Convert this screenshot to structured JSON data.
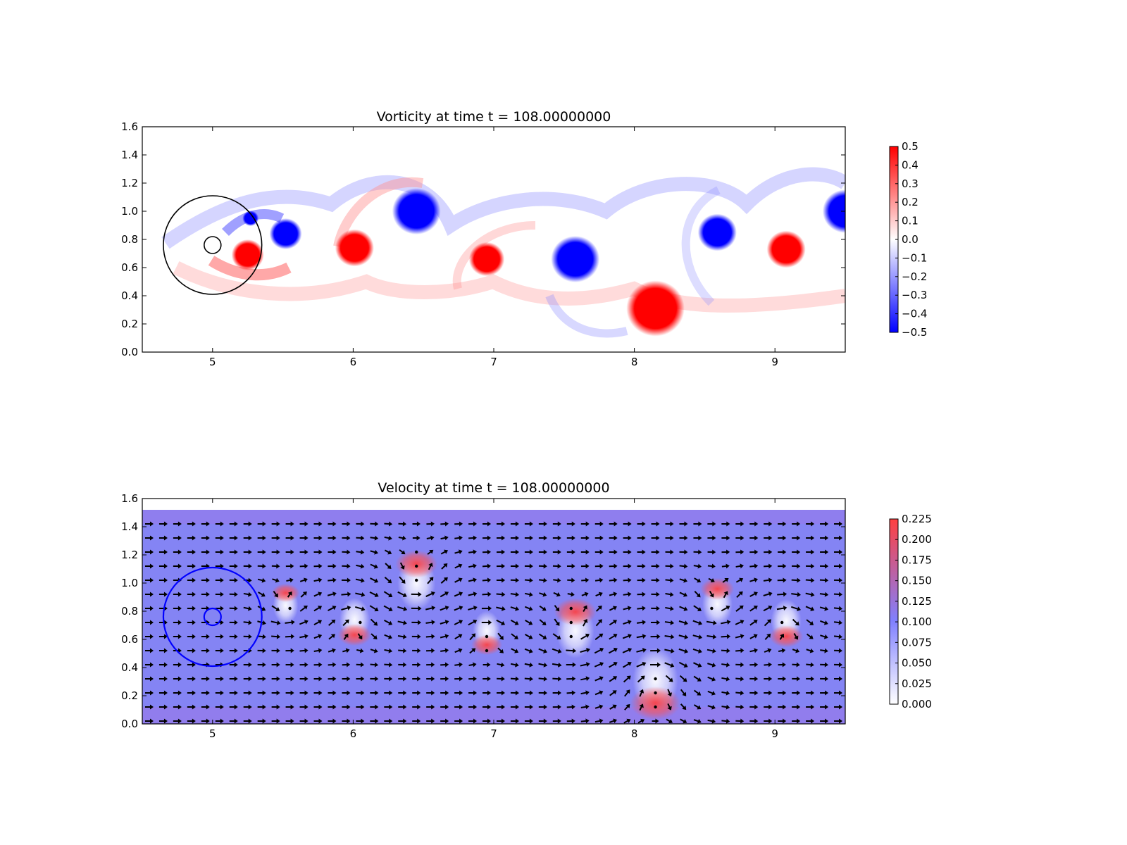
{
  "charts": [
    {
      "title": "Vorticity at time t =   108.00000000",
      "type": "heatmap",
      "xlim": [
        4.5,
        9.5
      ],
      "ylim": [
        0.0,
        1.6
      ],
      "xticks": [
        "5",
        "6",
        "7",
        "8",
        "9"
      ],
      "xtick_values": [
        5,
        6,
        7,
        8,
        9
      ],
      "yticks": [
        "0.0",
        "0.2",
        "0.4",
        "0.6",
        "0.8",
        "1.0",
        "1.2",
        "1.4",
        "1.6"
      ],
      "ytick_values": [
        0.0,
        0.2,
        0.4,
        0.6,
        0.8,
        1.0,
        1.2,
        1.4,
        1.6
      ],
      "colormap": "bwr",
      "colors": {
        "positive": "#ff0000",
        "negative": "#0000ff",
        "zero": "#ffffff"
      },
      "colorbar": {
        "range": [
          -0.5,
          0.5
        ],
        "ticks": [
          "0.5",
          "0.4",
          "0.3",
          "0.2",
          "0.1",
          "0.0",
          "−0.1",
          "−0.2",
          "−0.3",
          "−0.4",
          "−0.5"
        ],
        "tick_values": [
          0.5,
          0.4,
          0.3,
          0.2,
          0.1,
          0.0,
          -0.1,
          -0.2,
          -0.3,
          -0.4,
          -0.5
        ]
      },
      "circles": [
        {
          "center": [
            5.0,
            0.76
          ],
          "radius": 0.35,
          "color": "#000000"
        },
        {
          "center": [
            5.0,
            0.76
          ],
          "radius": 0.06,
          "color": "#000000"
        }
      ],
      "vortices": [
        {
          "x": 5.25,
          "y": 0.69,
          "r": 0.1,
          "sign": 1
        },
        {
          "x": 5.52,
          "y": 0.84,
          "r": 0.1,
          "sign": -1
        },
        {
          "x": 5.27,
          "y": 0.95,
          "r": 0.05,
          "sign": -1
        },
        {
          "x": 6.01,
          "y": 0.74,
          "r": 0.12,
          "sign": 1
        },
        {
          "x": 6.45,
          "y": 1.0,
          "r": 0.15,
          "sign": -1
        },
        {
          "x": 6.95,
          "y": 0.66,
          "r": 0.11,
          "sign": 1
        },
        {
          "x": 7.58,
          "y": 0.66,
          "r": 0.15,
          "sign": -1
        },
        {
          "x": 8.15,
          "y": 0.31,
          "r": 0.18,
          "sign": 1
        },
        {
          "x": 8.59,
          "y": 0.85,
          "r": 0.12,
          "sign": -1
        },
        {
          "x": 9.08,
          "y": 0.73,
          "r": 0.12,
          "sign": 1
        },
        {
          "x": 9.5,
          "y": 1.0,
          "r": 0.14,
          "sign": -1
        }
      ]
    },
    {
      "title": "Velocity at time t =   108.00000000",
      "type": "heatmap",
      "xlim": [
        4.5,
        9.5
      ],
      "ylim": [
        0.0,
        1.6
      ],
      "xticks": [
        "5",
        "6",
        "7",
        "8",
        "9"
      ],
      "xtick_values": [
        5,
        6,
        7,
        8,
        9
      ],
      "yticks": [
        "0.0",
        "0.2",
        "0.4",
        "0.6",
        "0.8",
        "1.0",
        "1.2",
        "1.4",
        "1.6"
      ],
      "ytick_values": [
        0.0,
        0.2,
        0.4,
        0.6,
        0.8,
        1.0,
        1.2,
        1.4,
        1.6
      ],
      "colormap": "white-blue-red",
      "colors": {
        "low": "#ffffff",
        "mid": "#8080ff",
        "high": "#ff4040",
        "arrows": "#000000"
      },
      "field_top": 1.52,
      "colorbar": {
        "range": [
          0.0,
          0.225
        ],
        "ticks": [
          "0.225",
          "0.200",
          "0.175",
          "0.150",
          "0.125",
          "0.100",
          "0.075",
          "0.050",
          "0.025",
          "0.000"
        ],
        "tick_values": [
          0.225,
          0.2,
          0.175,
          0.15,
          0.125,
          0.1,
          0.075,
          0.05,
          0.025,
          0.0
        ]
      },
      "circles": [
        {
          "center": [
            5.0,
            0.76
          ],
          "radius": 0.35,
          "color": "#0000ff"
        },
        {
          "center": [
            5.0,
            0.76
          ],
          "radius": 0.06,
          "color": "#0000ff"
        }
      ],
      "vortices": [
        {
          "x": 5.52,
          "y": 0.84,
          "r": 0.1,
          "sign": -1
        },
        {
          "x": 6.01,
          "y": 0.74,
          "r": 0.12,
          "sign": 1
        },
        {
          "x": 6.45,
          "y": 1.0,
          "r": 0.15,
          "sign": -1
        },
        {
          "x": 6.95,
          "y": 0.66,
          "r": 0.11,
          "sign": 1
        },
        {
          "x": 7.58,
          "y": 0.66,
          "r": 0.15,
          "sign": -1
        },
        {
          "x": 8.15,
          "y": 0.31,
          "r": 0.18,
          "sign": 1
        },
        {
          "x": 8.59,
          "y": 0.85,
          "r": 0.12,
          "sign": -1
        },
        {
          "x": 9.08,
          "y": 0.73,
          "r": 0.12,
          "sign": 1
        }
      ]
    }
  ]
}
